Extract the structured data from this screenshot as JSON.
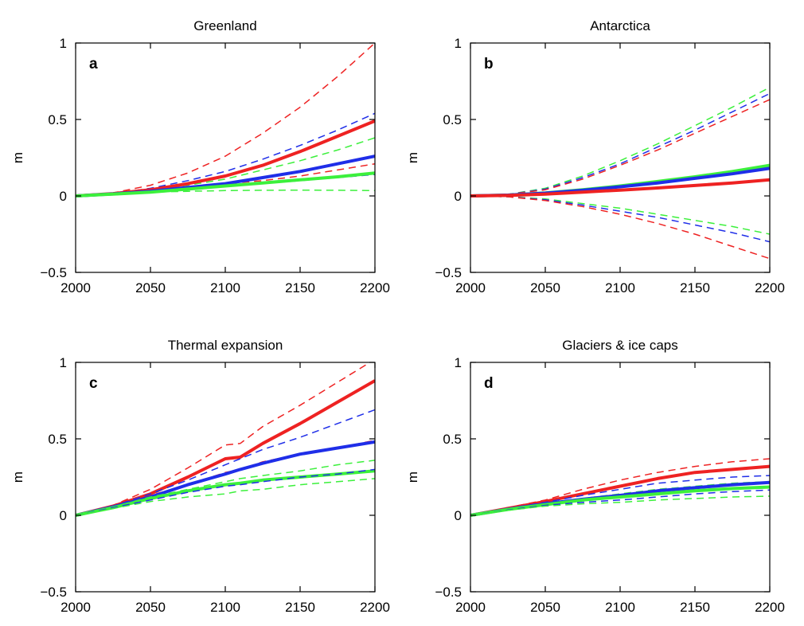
{
  "colors": {
    "red": "#ee2222",
    "blue": "#1f2ee8",
    "green": "#3cf03c"
  },
  "chart_data": [
    {
      "type": "line",
      "title": "Greenland",
      "panel_label": "a",
      "ylabel": "m",
      "xlim": [
        2000,
        2200
      ],
      "ylim": [
        -0.5,
        1
      ],
      "xticks": [
        "2000",
        "2050",
        "2100",
        "2150",
        "2200"
      ],
      "yticks": [
        "−0.5",
        "0",
        "0.5",
        "1"
      ],
      "x": [
        2000,
        2025,
        2050,
        2075,
        2100,
        2125,
        2150,
        2175,
        2200
      ],
      "series": [
        {
          "color": "red",
          "style": "dashed",
          "values": [
            0,
            0.02,
            0.07,
            0.15,
            0.26,
            0.41,
            0.58,
            0.78,
            1.0
          ]
        },
        {
          "color": "blue",
          "style": "dashed",
          "values": [
            0,
            0.015,
            0.05,
            0.1,
            0.16,
            0.24,
            0.33,
            0.43,
            0.54
          ]
        },
        {
          "color": "green",
          "style": "dashed",
          "values": [
            0,
            0.012,
            0.04,
            0.07,
            0.11,
            0.17,
            0.23,
            0.3,
            0.38
          ]
        },
        {
          "color": "red",
          "style": "dashed",
          "values": [
            0,
            0.012,
            0.03,
            0.05,
            0.08,
            0.1,
            0.13,
            0.17,
            0.21
          ]
        },
        {
          "color": "blue",
          "style": "dashed",
          "values": [
            0,
            0.012,
            0.03,
            0.045,
            0.065,
            0.08,
            0.1,
            0.12,
            0.14
          ]
        },
        {
          "color": "green",
          "style": "dashed",
          "values": [
            0,
            0.01,
            0.025,
            0.03,
            0.035,
            0.037,
            0.038,
            0.037,
            0.035
          ]
        },
        {
          "color": "red",
          "style": "solid",
          "values": [
            0,
            0.015,
            0.04,
            0.08,
            0.13,
            0.2,
            0.29,
            0.39,
            0.49
          ]
        },
        {
          "color": "blue",
          "style": "solid",
          "values": [
            0,
            0.013,
            0.03,
            0.055,
            0.08,
            0.12,
            0.16,
            0.21,
            0.26
          ]
        },
        {
          "color": "green",
          "style": "solid",
          "values": [
            0,
            0.012,
            0.025,
            0.045,
            0.065,
            0.085,
            0.105,
            0.125,
            0.15
          ]
        }
      ]
    },
    {
      "type": "line",
      "title": "Antarctica",
      "panel_label": "b",
      "ylabel": "m",
      "xlim": [
        2000,
        2200
      ],
      "ylim": [
        -0.5,
        1
      ],
      "xticks": [
        "2000",
        "2050",
        "2100",
        "2150",
        "2200"
      ],
      "yticks": [
        "−0.5",
        "0",
        "0.5",
        "1"
      ],
      "x": [
        2000,
        2025,
        2050,
        2075,
        2100,
        2125,
        2150,
        2175,
        2200
      ],
      "series": [
        {
          "color": "green",
          "style": "dashed",
          "values": [
            0,
            0.01,
            0.05,
            0.13,
            0.23,
            0.34,
            0.46,
            0.58,
            0.71
          ]
        },
        {
          "color": "blue",
          "style": "dashed",
          "values": [
            0,
            0.01,
            0.045,
            0.12,
            0.21,
            0.32,
            0.43,
            0.55,
            0.67
          ]
        },
        {
          "color": "red",
          "style": "dashed",
          "values": [
            0,
            0.01,
            0.04,
            0.11,
            0.2,
            0.3,
            0.41,
            0.52,
            0.63
          ]
        },
        {
          "color": "green",
          "style": "dashed",
          "values": [
            0,
            -0.005,
            -0.02,
            -0.05,
            -0.08,
            -0.12,
            -0.16,
            -0.2,
            -0.25
          ]
        },
        {
          "color": "blue",
          "style": "dashed",
          "values": [
            0,
            -0.005,
            -0.025,
            -0.06,
            -0.1,
            -0.14,
            -0.19,
            -0.24,
            -0.3
          ]
        },
        {
          "color": "red",
          "style": "dashed",
          "values": [
            0,
            -0.005,
            -0.03,
            -0.07,
            -0.12,
            -0.18,
            -0.25,
            -0.33,
            -0.41
          ]
        },
        {
          "color": "green",
          "style": "solid",
          "values": [
            0,
            0.005,
            0.02,
            0.04,
            0.065,
            0.095,
            0.125,
            0.16,
            0.2
          ]
        },
        {
          "color": "blue",
          "style": "solid",
          "values": [
            0,
            0.005,
            0.018,
            0.037,
            0.06,
            0.085,
            0.115,
            0.145,
            0.18
          ]
        },
        {
          "color": "red",
          "style": "solid",
          "values": [
            0,
            0.003,
            0.012,
            0.025,
            0.038,
            0.052,
            0.068,
            0.085,
            0.105
          ]
        }
      ]
    },
    {
      "type": "line",
      "title": "Thermal expansion",
      "panel_label": "c",
      "ylabel": "m",
      "xlim": [
        2000,
        2200
      ],
      "ylim": [
        -0.5,
        1
      ],
      "xticks": [
        "2000",
        "2050",
        "2100",
        "2150",
        "2200"
      ],
      "yticks": [
        "−0.5",
        "0",
        "0.5",
        "1"
      ],
      "x": [
        2000,
        2025,
        2050,
        2075,
        2100,
        2110,
        2125,
        2150,
        2175,
        2200
      ],
      "series": [
        {
          "color": "red",
          "style": "dashed",
          "values": [
            0,
            0.065,
            0.17,
            0.31,
            0.46,
            0.47,
            0.58,
            0.72,
            0.87,
            1.02
          ]
        },
        {
          "color": "red",
          "style": "solid",
          "values": [
            0,
            0.06,
            0.14,
            0.25,
            0.37,
            0.38,
            0.47,
            0.6,
            0.74,
            0.88
          ]
        },
        {
          "color": "blue",
          "style": "dashed",
          "values": [
            0,
            0.06,
            0.14,
            0.23,
            0.33,
            0.37,
            0.43,
            0.51,
            0.6,
            0.69
          ]
        },
        {
          "color": "red",
          "style": "dashed",
          "values": [
            0,
            0.055,
            0.13,
            0.2,
            0.28,
            0.3,
            0.35,
            0.4,
            0.44,
            0.49
          ]
        },
        {
          "color": "blue",
          "style": "solid",
          "values": [
            0,
            0.055,
            0.12,
            0.2,
            0.27,
            0.3,
            0.34,
            0.4,
            0.44,
            0.48
          ]
        },
        {
          "color": "green",
          "style": "dashed",
          "values": [
            0,
            0.055,
            0.12,
            0.17,
            0.22,
            0.24,
            0.26,
            0.29,
            0.33,
            0.36
          ]
        },
        {
          "color": "green",
          "style": "solid",
          "values": [
            0,
            0.05,
            0.11,
            0.16,
            0.2,
            0.21,
            0.23,
            0.25,
            0.27,
            0.29
          ]
        },
        {
          "color": "blue",
          "style": "dashed",
          "values": [
            0,
            0.05,
            0.1,
            0.15,
            0.19,
            0.2,
            0.22,
            0.25,
            0.27,
            0.3
          ]
        },
        {
          "color": "green",
          "style": "dashed",
          "values": [
            0,
            0.045,
            0.09,
            0.12,
            0.14,
            0.16,
            0.17,
            0.2,
            0.22,
            0.24
          ]
        }
      ]
    },
    {
      "type": "line",
      "title": "Glaciers & ice caps",
      "panel_label": "d",
      "ylabel": "m",
      "xlim": [
        2000,
        2200
      ],
      "ylim": [
        -0.5,
        1
      ],
      "xticks": [
        "2000",
        "2050",
        "2100",
        "2150",
        "2200"
      ],
      "yticks": [
        "−0.5",
        "0",
        "0.5",
        "1"
      ],
      "x": [
        2000,
        2025,
        2050,
        2075,
        2100,
        2125,
        2150,
        2175,
        2200
      ],
      "series": [
        {
          "color": "red",
          "style": "dashed",
          "values": [
            0,
            0.05,
            0.1,
            0.17,
            0.23,
            0.28,
            0.32,
            0.35,
            0.37
          ]
        },
        {
          "color": "red",
          "style": "solid",
          "values": [
            0,
            0.045,
            0.09,
            0.14,
            0.19,
            0.24,
            0.28,
            0.3,
            0.32
          ]
        },
        {
          "color": "blue",
          "style": "dashed",
          "values": [
            0,
            0.045,
            0.085,
            0.13,
            0.17,
            0.21,
            0.23,
            0.25,
            0.26
          ]
        },
        {
          "color": "green",
          "style": "dashed",
          "values": [
            0,
            0.042,
            0.08,
            0.11,
            0.14,
            0.17,
            0.19,
            0.21,
            0.22
          ]
        },
        {
          "color": "blue",
          "style": "solid",
          "values": [
            0,
            0.04,
            0.075,
            0.105,
            0.13,
            0.16,
            0.18,
            0.2,
            0.215
          ]
        },
        {
          "color": "green",
          "style": "solid",
          "values": [
            0,
            0.038,
            0.07,
            0.1,
            0.12,
            0.14,
            0.16,
            0.175,
            0.185
          ]
        },
        {
          "color": "blue",
          "style": "dashed",
          "values": [
            0,
            0.035,
            0.065,
            0.085,
            0.1,
            0.12,
            0.14,
            0.155,
            0.165
          ]
        },
        {
          "color": "green",
          "style": "dashed",
          "values": [
            0,
            0.033,
            0.06,
            0.075,
            0.085,
            0.1,
            0.11,
            0.12,
            0.125
          ]
        }
      ]
    }
  ]
}
